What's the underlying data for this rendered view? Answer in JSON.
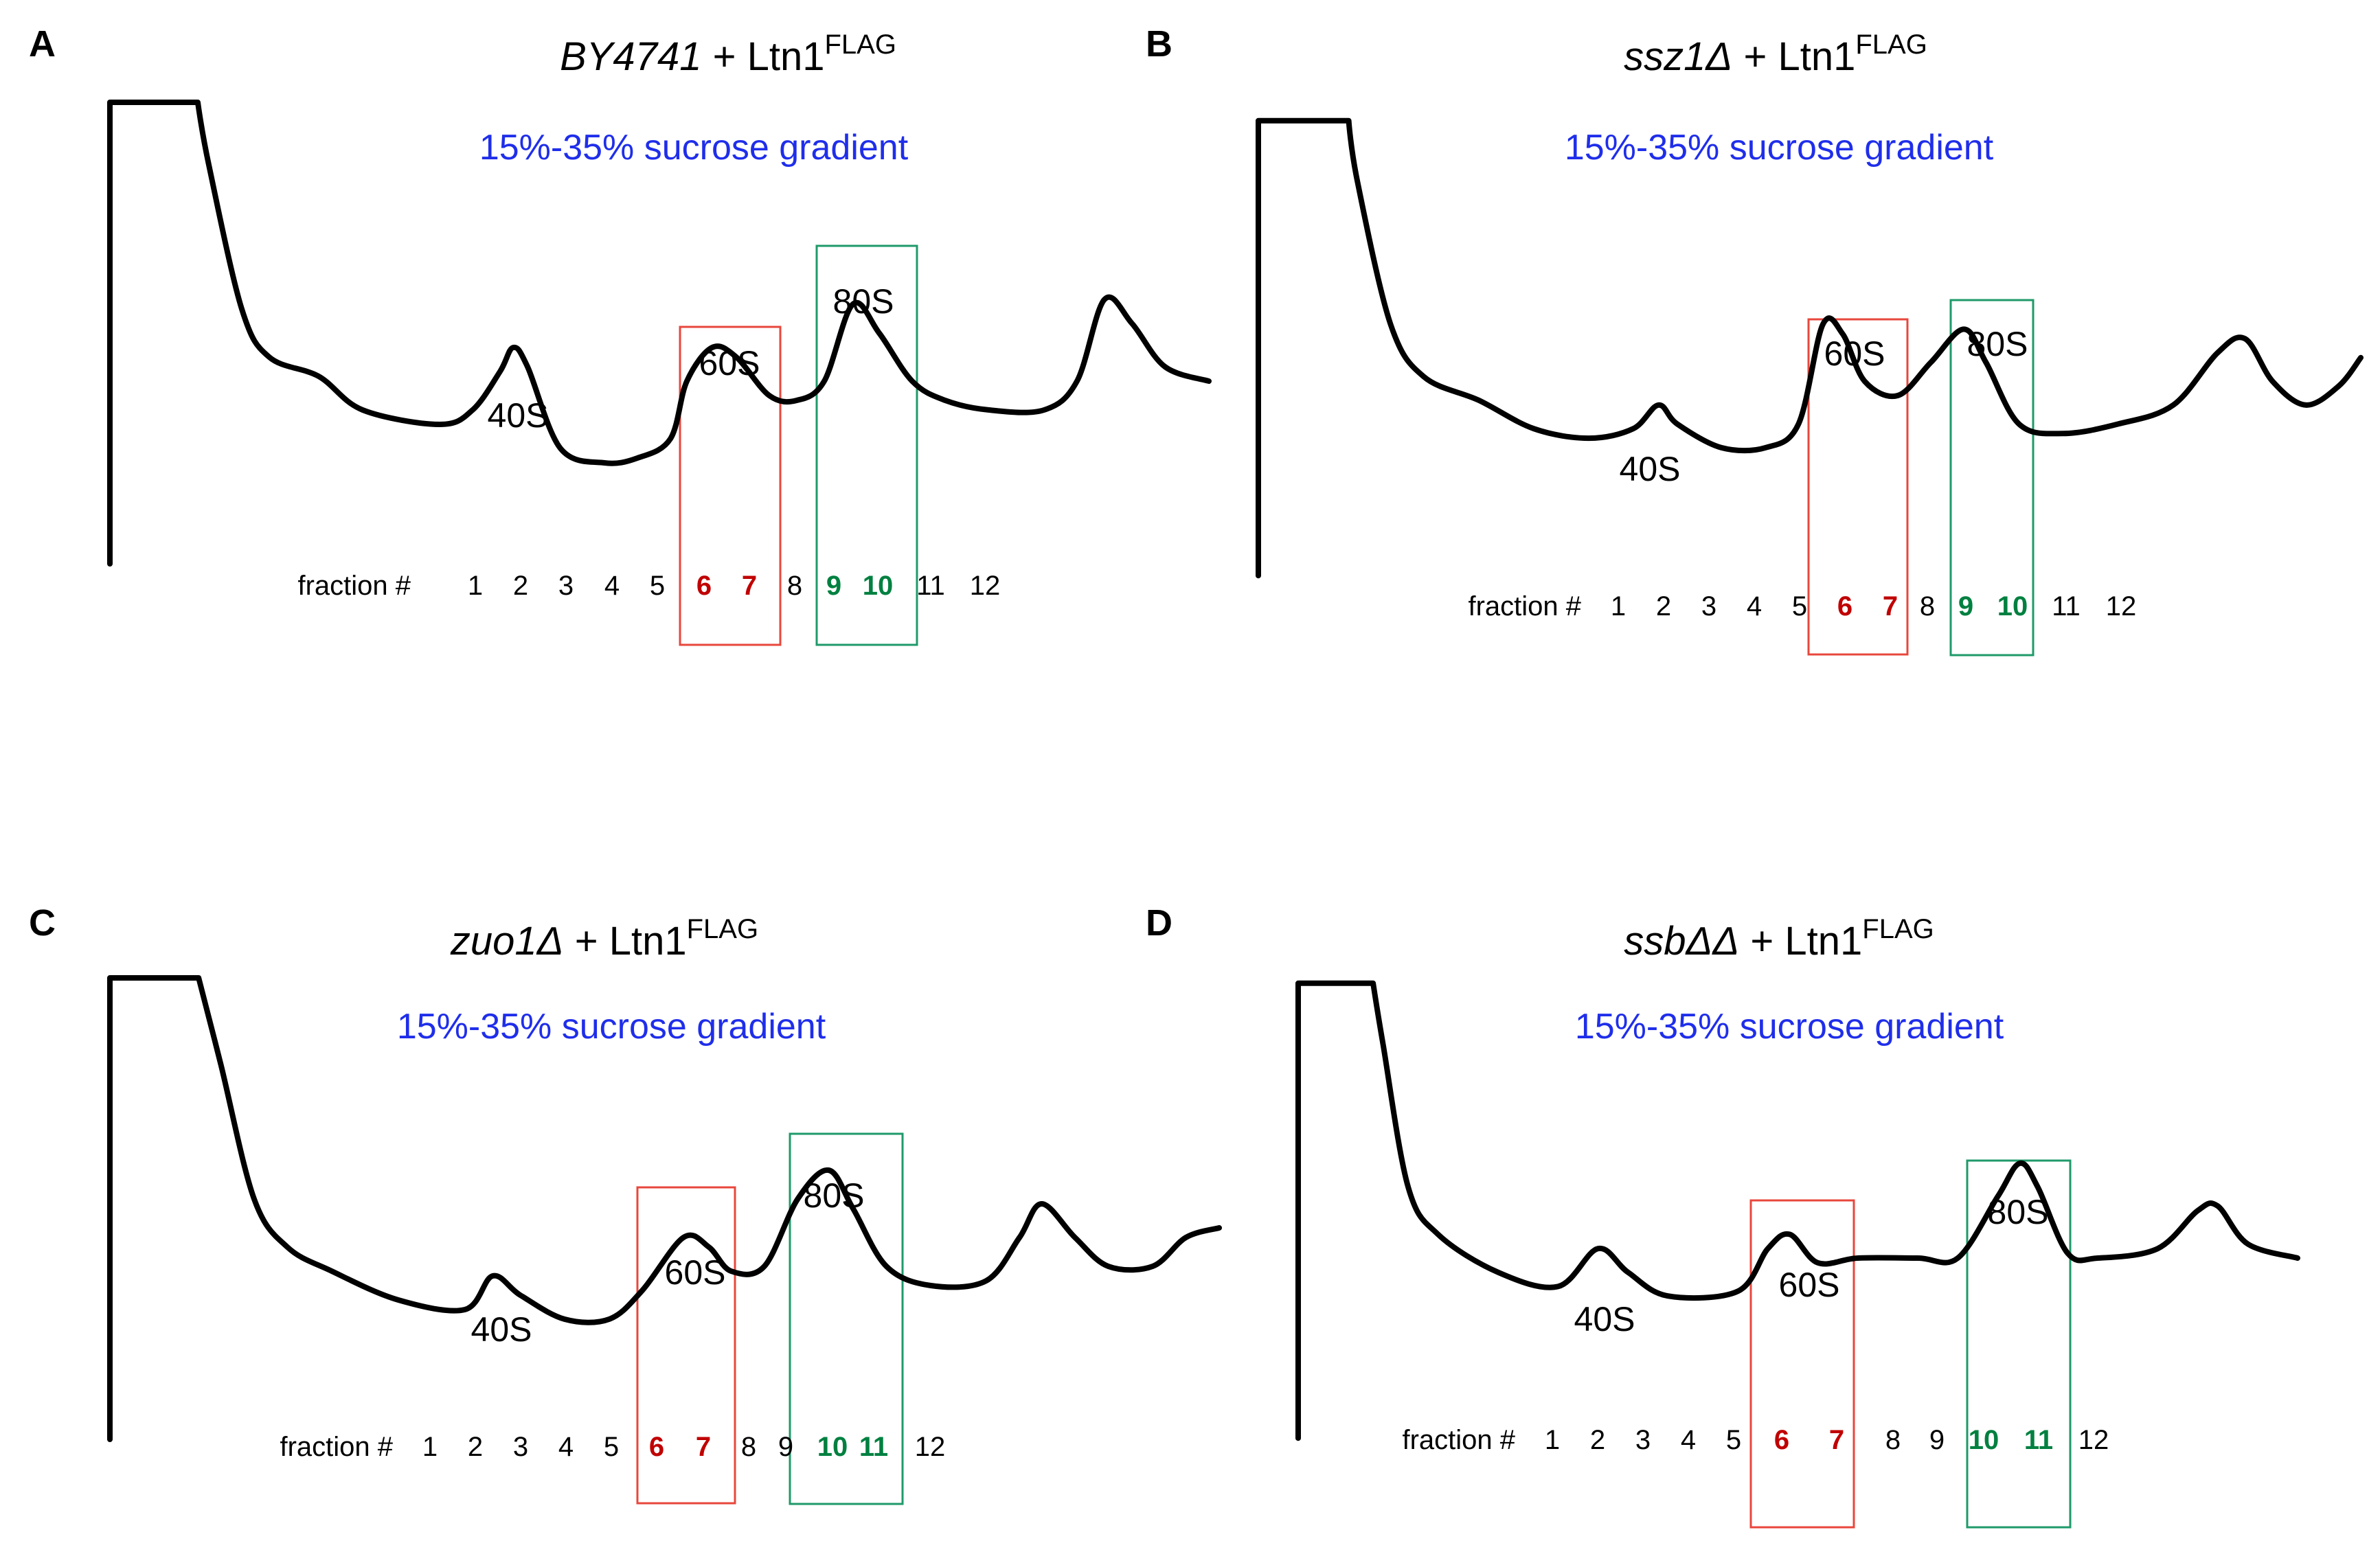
{
  "chart_data": [
    {
      "type": "line",
      "panel": "A",
      "title_italic": "BY4741",
      "title_rest": " + Ltn1",
      "title_sup": "FLAG",
      "subtitle": "15%-35% sucrose gradient",
      "fraction_label": "fraction #",
      "fractions": [
        "1",
        "2",
        "3",
        "4",
        "5",
        "6",
        "7",
        "8",
        "9",
        "10",
        "11",
        "12"
      ],
      "highlight": {
        "red": [
          "6",
          "7"
        ],
        "green": [
          "9",
          "10"
        ]
      },
      "peaks": [
        {
          "label": "40S",
          "at": 0.367
        },
        {
          "label": "60S",
          "at": 0.548
        },
        {
          "label": "80S",
          "at": 0.676
        }
      ],
      "profile": [
        [
          0,
          0.98
        ],
        [
          0,
          0.02
        ],
        [
          0.08,
          0.02
        ],
        [
          0.09,
          0.15
        ],
        [
          0.12,
          0.45
        ],
        [
          0.145,
          0.55
        ],
        [
          0.19,
          0.59
        ],
        [
          0.23,
          0.66
        ],
        [
          0.3,
          0.69
        ],
        [
          0.33,
          0.66
        ],
        [
          0.355,
          0.58
        ],
        [
          0.367,
          0.53
        ],
        [
          0.38,
          0.57
        ],
        [
          0.41,
          0.74
        ],
        [
          0.45,
          0.77
        ],
        [
          0.48,
          0.76
        ],
        [
          0.51,
          0.72
        ],
        [
          0.525,
          0.6
        ],
        [
          0.548,
          0.53
        ],
        [
          0.57,
          0.55
        ],
        [
          0.6,
          0.63
        ],
        [
          0.625,
          0.64
        ],
        [
          0.65,
          0.6
        ],
        [
          0.676,
          0.44
        ],
        [
          0.7,
          0.5
        ],
        [
          0.73,
          0.6
        ],
        [
          0.76,
          0.64
        ],
        [
          0.8,
          0.66
        ],
        [
          0.85,
          0.66
        ],
        [
          0.88,
          0.6
        ],
        [
          0.905,
          0.43
        ],
        [
          0.93,
          0.48
        ],
        [
          0.96,
          0.57
        ],
        [
          1.0,
          0.6
        ]
      ],
      "ylim": [
        0,
        1
      ]
    },
    {
      "type": "line",
      "panel": "B",
      "title_italic": "ssz1Δ",
      "title_rest": " + Ltn1",
      "title_sup": "FLAG",
      "subtitle": "15%-35% sucrose gradient",
      "fraction_label": "fraction #",
      "fractions": [
        "1",
        "2",
        "3",
        "4",
        "5",
        "6",
        "7",
        "8",
        "9",
        "10",
        "11",
        "12"
      ],
      "highlight": {
        "red": [
          "6",
          "7"
        ],
        "green": [
          "9",
          "10"
        ]
      },
      "peaks": [
        {
          "label": "40S",
          "at": 0.363
        },
        {
          "label": "60S",
          "at": 0.512
        },
        {
          "label": "80S",
          "at": 0.64
        }
      ],
      "profile": [
        [
          0,
          0.98
        ],
        [
          0,
          0.02
        ],
        [
          0.082,
          0.02
        ],
        [
          0.09,
          0.15
        ],
        [
          0.12,
          0.45
        ],
        [
          0.15,
          0.56
        ],
        [
          0.2,
          0.61
        ],
        [
          0.25,
          0.67
        ],
        [
          0.3,
          0.69
        ],
        [
          0.34,
          0.67
        ],
        [
          0.363,
          0.62
        ],
        [
          0.38,
          0.66
        ],
        [
          0.42,
          0.71
        ],
        [
          0.46,
          0.71
        ],
        [
          0.49,
          0.66
        ],
        [
          0.512,
          0.45
        ],
        [
          0.53,
          0.47
        ],
        [
          0.55,
          0.57
        ],
        [
          0.58,
          0.6
        ],
        [
          0.61,
          0.53
        ],
        [
          0.64,
          0.46
        ],
        [
          0.66,
          0.53
        ],
        [
          0.69,
          0.66
        ],
        [
          0.73,
          0.68
        ],
        [
          0.78,
          0.66
        ],
        [
          0.83,
          0.62
        ],
        [
          0.87,
          0.51
        ],
        [
          0.895,
          0.48
        ],
        [
          0.92,
          0.57
        ],
        [
          0.95,
          0.62
        ],
        [
          0.98,
          0.58
        ],
        [
          1.0,
          0.52
        ]
      ],
      "ylim": [
        0,
        1
      ]
    },
    {
      "type": "line",
      "panel": "C",
      "title_italic": "zuo1Δ",
      "title_rest": " + Ltn1",
      "title_sup": "FLAG",
      "subtitle": "15%-35% sucrose gradient",
      "fraction_label": "fraction #",
      "fractions": [
        "1",
        "2",
        "3",
        "4",
        "5",
        "6",
        "7",
        "8",
        "9",
        "10",
        "11",
        "12"
      ],
      "highlight": {
        "red": [
          "6",
          "7"
        ],
        "green": [
          "10",
          "11"
        ]
      },
      "peaks": [
        {
          "label": "40S",
          "at": 0.345
        },
        {
          "label": "60S",
          "at": 0.517
        },
        {
          "label": "80S",
          "at": 0.648
        }
      ],
      "profile": [
        [
          0,
          0.98
        ],
        [
          0,
          0.02
        ],
        [
          0.08,
          0.02
        ],
        [
          0.1,
          0.2
        ],
        [
          0.13,
          0.48
        ],
        [
          0.16,
          0.58
        ],
        [
          0.2,
          0.63
        ],
        [
          0.26,
          0.69
        ],
        [
          0.32,
          0.71
        ],
        [
          0.345,
          0.64
        ],
        [
          0.37,
          0.68
        ],
        [
          0.41,
          0.73
        ],
        [
          0.45,
          0.73
        ],
        [
          0.48,
          0.67
        ],
        [
          0.517,
          0.56
        ],
        [
          0.54,
          0.58
        ],
        [
          0.56,
          0.63
        ],
        [
          0.59,
          0.62
        ],
        [
          0.62,
          0.48
        ],
        [
          0.648,
          0.42
        ],
        [
          0.67,
          0.5
        ],
        [
          0.7,
          0.62
        ],
        [
          0.74,
          0.66
        ],
        [
          0.79,
          0.65
        ],
        [
          0.82,
          0.56
        ],
        [
          0.84,
          0.49
        ],
        [
          0.87,
          0.56
        ],
        [
          0.9,
          0.62
        ],
        [
          0.94,
          0.62
        ],
        [
          0.97,
          0.56
        ],
        [
          1.0,
          0.54
        ]
      ],
      "ylim": [
        0,
        1
      ]
    },
    {
      "type": "line",
      "panel": "D",
      "title_italic": "ssbΔΔ",
      "title_rest": " + Ltn1",
      "title_sup": "FLAG",
      "subtitle": "15%-35% sucrose gradient",
      "fraction_label": "fraction #",
      "fractions": [
        "1",
        "2",
        "3",
        "4",
        "5",
        "6",
        "7",
        "8",
        "9",
        "10",
        "11",
        "12"
      ],
      "highlight": {
        "red": [
          "6",
          "7"
        ],
        "green": [
          "10",
          "11"
        ]
      },
      "peaks": [
        {
          "label": "40S",
          "at": 0.3
        },
        {
          "label": "60S",
          "at": 0.492
        },
        {
          "label": "80S",
          "at": 0.722
        }
      ],
      "profile": [
        [
          0,
          0.98
        ],
        [
          0,
          0.02
        ],
        [
          0.075,
          0.02
        ],
        [
          0.085,
          0.15
        ],
        [
          0.11,
          0.45
        ],
        [
          0.14,
          0.55
        ],
        [
          0.2,
          0.63
        ],
        [
          0.26,
          0.66
        ],
        [
          0.3,
          0.58
        ],
        [
          0.33,
          0.63
        ],
        [
          0.37,
          0.68
        ],
        [
          0.44,
          0.67
        ],
        [
          0.47,
          0.58
        ],
        [
          0.492,
          0.55
        ],
        [
          0.52,
          0.61
        ],
        [
          0.56,
          0.6
        ],
        [
          0.62,
          0.6
        ],
        [
          0.66,
          0.6
        ],
        [
          0.7,
          0.47
        ],
        [
          0.722,
          0.4
        ],
        [
          0.74,
          0.45
        ],
        [
          0.77,
          0.59
        ],
        [
          0.8,
          0.6
        ],
        [
          0.86,
          0.58
        ],
        [
          0.9,
          0.5
        ],
        [
          0.92,
          0.49
        ],
        [
          0.95,
          0.57
        ],
        [
          1.0,
          0.6
        ]
      ],
      "ylim": [
        0,
        1
      ]
    }
  ]
}
